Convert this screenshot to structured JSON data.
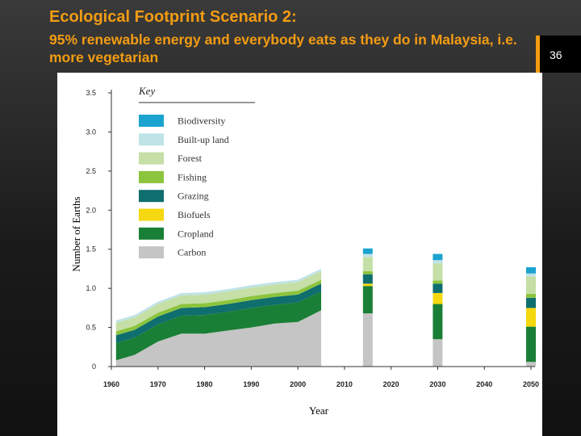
{
  "slide": {
    "title": "Ecological Footprint Scenario 2:",
    "subtitle": "95% renewable energy and everybody eats as they do in Malaysia, i.e. more vegetarian",
    "number": "36"
  },
  "chart_data": {
    "type": "area",
    "title": "",
    "xlabel": "Year",
    "ylabel": "Number of Earths",
    "xlim": [
      1960,
      2050
    ],
    "ylim": [
      0,
      3.5
    ],
    "y_ticks": [
      "0",
      "0.5",
      "1.0",
      "1.5",
      "2.0",
      "2.5",
      "3.0",
      "3.5"
    ],
    "x_ticks": [
      "1960",
      "1970",
      "1980",
      "1990",
      "2000",
      "2010",
      "2020",
      "2030",
      "2040",
      "2050"
    ],
    "legend_title": "Key",
    "legend_position": "top-left",
    "stack_order": [
      "Carbon",
      "Cropland",
      "Biofuels",
      "Grazing",
      "Fishing",
      "Forest",
      "Built-up land",
      "Biodiversity"
    ],
    "legend": [
      {
        "name": "Biodiversity",
        "color": "#1ba3cf"
      },
      {
        "name": "Built-up land",
        "color": "#bfe3e6"
      },
      {
        "name": "Forest",
        "color": "#c5dfa6"
      },
      {
        "name": "Fishing",
        "color": "#8cc43d"
      },
      {
        "name": "Grazing",
        "color": "#0f6e6e"
      },
      {
        "name": "Biofuels",
        "color": "#f5d80f"
      },
      {
        "name": "Cropland",
        "color": "#1a7f36"
      },
      {
        "name": "Carbon",
        "color": "#c5c5c5"
      }
    ],
    "historical": {
      "x": [
        1961,
        1965,
        1970,
        1975,
        1980,
        1985,
        1990,
        1995,
        2000,
        2005
      ],
      "series": [
        {
          "name": "Carbon",
          "values": [
            0.08,
            0.15,
            0.32,
            0.42,
            0.42,
            0.46,
            0.5,
            0.55,
            0.57,
            0.72
          ]
        },
        {
          "name": "Cropland",
          "values": [
            0.22,
            0.22,
            0.22,
            0.23,
            0.24,
            0.24,
            0.25,
            0.24,
            0.25,
            0.24
          ]
        },
        {
          "name": "Biofuels",
          "values": [
            0,
            0,
            0,
            0,
            0,
            0,
            0,
            0,
            0,
            0
          ]
        },
        {
          "name": "Grazing",
          "values": [
            0.1,
            0.1,
            0.1,
            0.1,
            0.1,
            0.1,
            0.1,
            0.1,
            0.1,
            0.1
          ]
        },
        {
          "name": "Fishing",
          "values": [
            0.05,
            0.05,
            0.05,
            0.05,
            0.05,
            0.05,
            0.05,
            0.05,
            0.05,
            0.05
          ]
        },
        {
          "name": "Forest",
          "values": [
            0.11,
            0.11,
            0.11,
            0.11,
            0.11,
            0.11,
            0.11,
            0.11,
            0.11,
            0.11
          ]
        },
        {
          "name": "Built-up land",
          "values": [
            0.03,
            0.03,
            0.03,
            0.03,
            0.03,
            0.03,
            0.03,
            0.03,
            0.03,
            0.03
          ]
        },
        {
          "name": "Biodiversity",
          "values": [
            0,
            0,
            0,
            0,
            0,
            0,
            0,
            0,
            0,
            0
          ]
        }
      ]
    },
    "scenario_years": [
      "2015",
      "2030",
      "2050"
    ],
    "scenario_series": [
      {
        "name": "Carbon",
        "values": [
          0.68,
          0.35,
          0.06
        ]
      },
      {
        "name": "Cropland",
        "values": [
          0.35,
          0.45,
          0.45
        ]
      },
      {
        "name": "Biofuels",
        "values": [
          0.03,
          0.14,
          0.24
        ]
      },
      {
        "name": "Grazing",
        "values": [
          0.12,
          0.12,
          0.13
        ]
      },
      {
        "name": "Fishing",
        "values": [
          0.04,
          0.04,
          0.05
        ]
      },
      {
        "name": "Forest",
        "values": [
          0.18,
          0.22,
          0.22
        ]
      },
      {
        "name": "Built-up land",
        "values": [
          0.04,
          0.04,
          0.04
        ]
      },
      {
        "name": "Biodiversity",
        "values": [
          0.07,
          0.08,
          0.08
        ]
      }
    ]
  }
}
